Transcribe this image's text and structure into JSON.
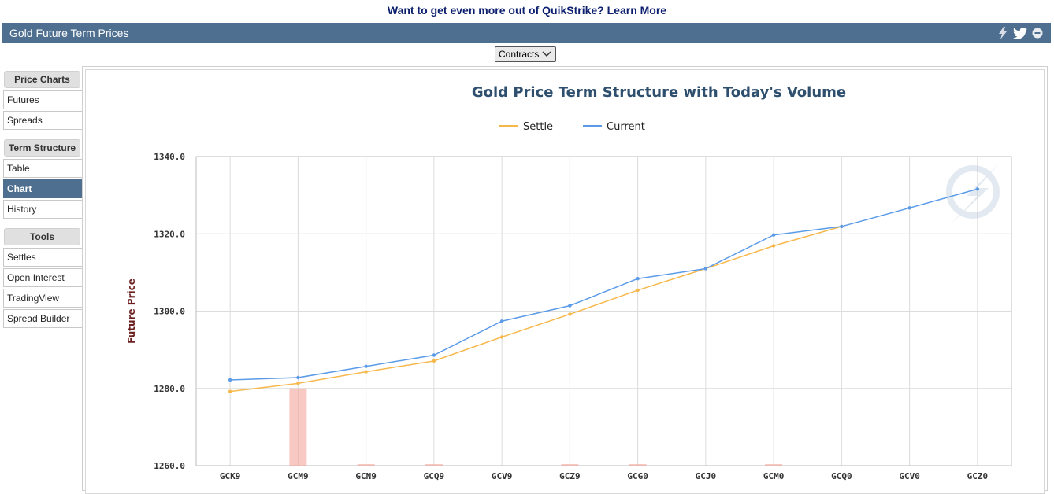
{
  "promo": {
    "text": "Want to get even more out of QuikStrike?",
    "link": "Learn More"
  },
  "header": {
    "title": "Gold Future Term Prices",
    "icons": [
      "lightning-icon",
      "twitter-icon",
      "collapse-icon"
    ]
  },
  "toolbar": {
    "contracts_label": "Contracts"
  },
  "sidebar": {
    "groups": [
      {
        "title": "Price Charts",
        "items": [
          "Futures",
          "Spreads"
        ]
      },
      {
        "title": "Term Structure",
        "items": [
          "Table",
          "Chart",
          "History"
        ]
      },
      {
        "title": "Tools",
        "items": [
          "Settles",
          "Open Interest",
          "TradingView",
          "Spread Builder"
        ]
      }
    ],
    "active_item": "Chart"
  },
  "chart_data": {
    "type": "line",
    "title": "Gold Price Term Structure with Today's Volume",
    "ylabel": "Future Price",
    "ylim": [
      1260,
      1340
    ],
    "yticks": [
      "1260.0",
      "1280.0",
      "1300.0",
      "1320.0",
      "1340.0"
    ],
    "categories": [
      "GCK9",
      "GCM9",
      "GCN9",
      "GCQ9",
      "GCV9",
      "GCZ9",
      "GCG0",
      "GCJ0",
      "GCM0",
      "GCQ0",
      "GCV0",
      "GCZ0"
    ],
    "legend_position": "top-center",
    "grid": true,
    "series": [
      {
        "name": "Settle",
        "color": "#f7b84b",
        "values": [
          1279.2,
          1281.3,
          1284.3,
          1287.1,
          1293.3,
          1299.2,
          1305.4,
          1311.0,
          1316.9,
          1321.9,
          null,
          null
        ]
      },
      {
        "name": "Current",
        "color": "#5b9be8",
        "values": [
          1282.2,
          1282.8,
          1285.7,
          1288.6,
          1297.4,
          1301.4,
          1308.4,
          1311.0,
          1319.7,
          1321.9,
          1326.7,
          1331.6
        ]
      }
    ],
    "volume_color": "#f4a39a",
    "volume_relative": [
      0,
      1.0,
      0.01,
      0.01,
      0,
      0.01,
      0.01,
      0,
      0.01,
      0,
      0,
      0
    ]
  }
}
